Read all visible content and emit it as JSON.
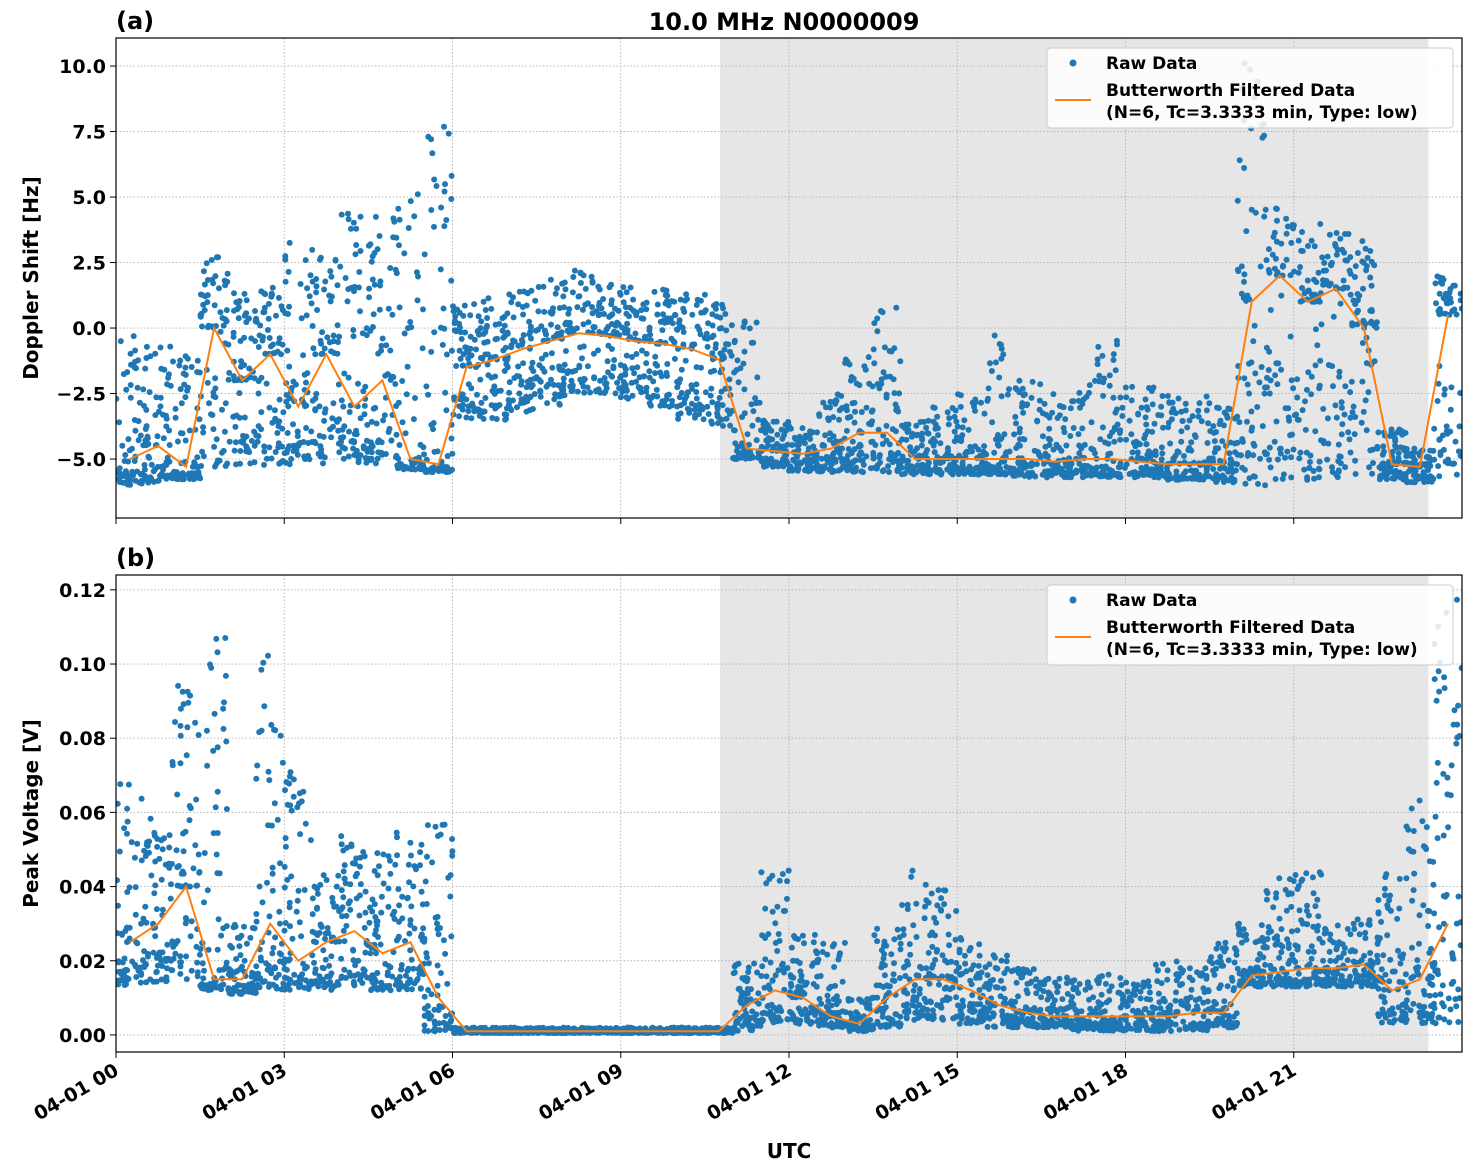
{
  "title": "10.0 MHz N0000009",
  "colors": {
    "raw": "#1f77b4",
    "filtered": "#ff7f0e",
    "shade": "#e6e6e6"
  },
  "chart_data": [
    {
      "type": "scatter",
      "panel_label": "(a)",
      "xlabel": "",
      "ylabel": "Doppler Shift [Hz]",
      "xlim_hours": [
        0,
        24
      ],
      "ylim": [
        -7.25,
        11.07
      ],
      "yticks": [
        -5.0,
        -2.5,
        0.0,
        2.5,
        5.0,
        7.5,
        10.0
      ],
      "ytick_labels": [
        "−5.0",
        "−2.5",
        "0.0",
        "2.5",
        "5.0",
        "7.5",
        "10.0"
      ],
      "grid": true,
      "legend": {
        "placement": "top-right",
        "entries": [
          "Raw Data",
          "Butterworth Filtered Data",
          "(N=6, Tc=3.3333 min, Type: low)"
        ]
      },
      "shaded_span_hours": [
        10.77,
        23.4
      ],
      "bins_hours": [
        0,
        0.5,
        1,
        1.5,
        2,
        2.5,
        3,
        3.5,
        4,
        4.5,
        5,
        5.5,
        6,
        6.5,
        7,
        7.5,
        8,
        8.5,
        9,
        9.5,
        10,
        10.5,
        11,
        11.5,
        12,
        12.5,
        13,
        13.5,
        14,
        14.5,
        15,
        15.5,
        16,
        16.5,
        17,
        17.5,
        18,
        18.5,
        19,
        19.5,
        20,
        20.5,
        21,
        21.5,
        22,
        22.5,
        23,
        23.5
      ],
      "raw_min": [
        -6,
        -5.9,
        -5.8,
        -5.5,
        -5.3,
        -5.3,
        -5.2,
        -5.2,
        -5.2,
        -5.2,
        -5.4,
        -5.5,
        -3.5,
        -3.5,
        -3.2,
        -3,
        -2.5,
        -2.5,
        -2.7,
        -3,
        -3.5,
        -3.8,
        -5,
        -5.3,
        -5.5,
        -5.5,
        -5.5,
        -5.5,
        -5.6,
        -5.6,
        -5.6,
        -5.6,
        -5.7,
        -5.7,
        -5.7,
        -5.7,
        -5.7,
        -5.8,
        -5.8,
        -5.9,
        -6,
        -5.8,
        -5.8,
        -5.7,
        -5.7,
        -5.8,
        -5.9,
        -5.8
      ],
      "raw_max": [
        -0.3,
        -0.6,
        -1,
        3,
        1.5,
        1.7,
        3.3,
        2.8,
        4.5,
        4.6,
        5.2,
        8,
        1,
        1.3,
        1.6,
        2,
        2.2,
        1.9,
        1.6,
        1.5,
        1.5,
        1,
        0.5,
        -3.5,
        -3.8,
        -2.5,
        -1,
        0.9,
        -3.5,
        -3,
        -2.5,
        -0.2,
        -2,
        -2.5,
        -2,
        -0.4,
        -2.2,
        -2.5,
        -2.6,
        -3,
        10.2,
        4.6,
        4,
        3.7,
        3.4,
        -3.8,
        -4.5,
        2
      ],
      "filtered": [
        -5,
        -4.5,
        -5.3,
        0,
        -2,
        -1,
        -3,
        -1,
        -3,
        -2,
        -5,
        -5.2,
        -1.5,
        -1.2,
        -0.8,
        -0.5,
        -0.2,
        -0.3,
        -0.5,
        -0.6,
        -0.8,
        -1.2,
        -4.6,
        -4.7,
        -4.8,
        -4.6,
        -4,
        -4,
        -5,
        -5,
        -5,
        -5,
        -5,
        -5.1,
        -5,
        -5,
        -5.1,
        -5.2,
        -5.2,
        -5.2,
        1,
        2,
        1,
        1.5,
        0,
        -5.2,
        -5.3,
        0.5
      ]
    },
    {
      "type": "scatter",
      "panel_label": "(b)",
      "xlabel": "UTC",
      "ylabel": "Peak Voltage [V]",
      "xlim_hours": [
        0,
        24
      ],
      "ylim": [
        -0.0046,
        0.124
      ],
      "yticks": [
        0,
        0.02,
        0.04,
        0.06,
        0.08,
        0.1,
        0.12
      ],
      "ytick_labels": [
        "0.00",
        "0.02",
        "0.04",
        "0.06",
        "0.08",
        "0.10",
        "0.12"
      ],
      "xticks_hours": [
        0,
        3,
        6,
        9,
        12,
        15,
        18,
        21
      ],
      "xtick_labels": [
        "04-01 00",
        "04-01 03",
        "04-01 06",
        "04-01 09",
        "04-01 12",
        "04-01 15",
        "04-01 18",
        "04-01 21"
      ],
      "grid": true,
      "legend": {
        "placement": "top-right",
        "entries": [
          "Raw Data",
          "Butterworth Filtered Data",
          "(N=6, Tc=3.3333 min, Type: low)"
        ]
      },
      "shaded_span_hours": [
        10.77,
        23.4
      ],
      "bins_hours": [
        0,
        0.5,
        1,
        1.5,
        2,
        2.5,
        3,
        3.5,
        4,
        4.5,
        5,
        5.5,
        6,
        6.5,
        7,
        7.5,
        8,
        8.5,
        9,
        9.5,
        10,
        10.5,
        11,
        11.5,
        12,
        12.5,
        13,
        13.5,
        14,
        14.5,
        15,
        15.5,
        16,
        16.5,
        17,
        17.5,
        18,
        18.5,
        19,
        19.5,
        20,
        20.5,
        21,
        21.5,
        22,
        22.5,
        23,
        23.5
      ],
      "raw_min": [
        0.013,
        0.014,
        0.015,
        0.012,
        0.011,
        0.012,
        0.012,
        0.012,
        0.013,
        0.012,
        0.012,
        0.001,
        0.0005,
        0.0005,
        0.0005,
        0.0005,
        0.0005,
        0.0005,
        0.0005,
        0.0005,
        0.0005,
        0.0005,
        0.001,
        0.003,
        0.003,
        0.002,
        0.001,
        0.002,
        0.004,
        0.004,
        0.003,
        0.002,
        0.002,
        0.002,
        0.001,
        0.001,
        0.001,
        0.001,
        0.001,
        0.002,
        0.013,
        0.013,
        0.013,
        0.013,
        0.013,
        0.003,
        0.003,
        0.003
      ],
      "raw_max": [
        0.068,
        0.06,
        0.095,
        0.112,
        0.03,
        0.103,
        0.073,
        0.045,
        0.054,
        0.05,
        0.055,
        0.057,
        0.002,
        0.002,
        0.002,
        0.002,
        0.002,
        0.002,
        0.002,
        0.002,
        0.002,
        0.002,
        0.02,
        0.047,
        0.027,
        0.025,
        0.01,
        0.029,
        0.045,
        0.04,
        0.027,
        0.022,
        0.018,
        0.016,
        0.015,
        0.017,
        0.015,
        0.02,
        0.018,
        0.025,
        0.03,
        0.043,
        0.044,
        0.03,
        0.032,
        0.045,
        0.065,
        0.118
      ],
      "filtered": [
        0.025,
        0.03,
        0.04,
        0.015,
        0.015,
        0.03,
        0.02,
        0.025,
        0.028,
        0.022,
        0.025,
        0.01,
        0.001,
        0.001,
        0.001,
        0.001,
        0.001,
        0.001,
        0.001,
        0.001,
        0.001,
        0.001,
        0.008,
        0.012,
        0.01,
        0.005,
        0.003,
        0.01,
        0.015,
        0.015,
        0.012,
        0.008,
        0.006,
        0.005,
        0.005,
        0.005,
        0.005,
        0.005,
        0.006,
        0.006,
        0.016,
        0.017,
        0.018,
        0.018,
        0.019,
        0.012,
        0.015,
        0.03
      ]
    }
  ]
}
